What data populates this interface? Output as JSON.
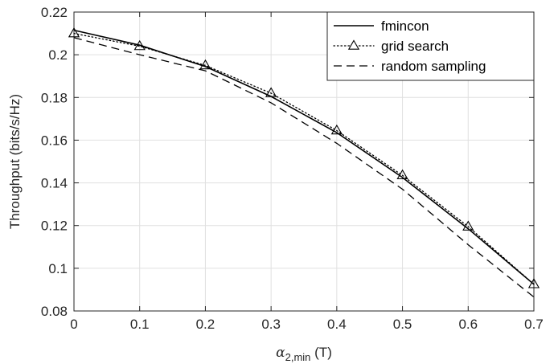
{
  "chart_data": {
    "type": "line",
    "xlabel_symbol": "α",
    "xlabel_subscript": "2,min",
    "xlabel_unit": " (T)",
    "ylabel": "Throughput (bits/s/Hz)",
    "xlim": [
      0,
      0.7
    ],
    "ylim": [
      0.08,
      0.22
    ],
    "xticks": [
      0,
      0.1,
      0.2,
      0.3,
      0.4,
      0.5,
      0.6,
      0.7
    ],
    "xtick_labels": [
      "0",
      "0.1",
      "0.2",
      "0.3",
      "0.4",
      "0.5",
      "0.6",
      "0.7"
    ],
    "yticks": [
      0.08,
      0.1,
      0.12,
      0.14,
      0.16,
      0.18,
      0.2,
      0.22
    ],
    "ytick_labels": [
      "0.08",
      "0.1",
      "0.12",
      "0.14",
      "0.16",
      "0.18",
      "0.2",
      "0.22"
    ],
    "grid": true,
    "legend_position": "top-right",
    "x": [
      0,
      0.1,
      0.2,
      0.3,
      0.4,
      0.5,
      0.6,
      0.7
    ],
    "series": [
      {
        "name": "fmincon",
        "style": "solid",
        "marker": "none",
        "color": "#000000",
        "values": [
          0.2115,
          0.2045,
          0.1945,
          0.1805,
          0.1635,
          0.1425,
          0.1185,
          0.0925
        ]
      },
      {
        "name": "grid search",
        "style": "dotted",
        "marker": "triangle",
        "color": "#000000",
        "values": [
          0.21,
          0.204,
          0.195,
          0.182,
          0.1645,
          0.1435,
          0.1195,
          0.0925
        ]
      },
      {
        "name": "random sampling",
        "style": "dashed",
        "marker": "none",
        "color": "#000000",
        "values": [
          0.208,
          0.2,
          0.1925,
          0.1775,
          0.1585,
          0.137,
          0.111,
          0.0865
        ]
      }
    ]
  }
}
